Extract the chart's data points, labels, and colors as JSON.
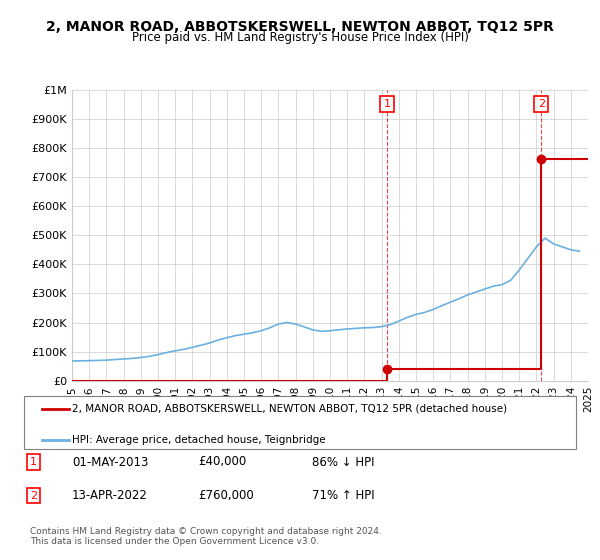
{
  "title": "2, MANOR ROAD, ABBOTSKERSWELL, NEWTON ABBOT, TQ12 5PR",
  "subtitle": "Price paid vs. HM Land Registry's House Price Index (HPI)",
  "legend_entries": [
    "2, MANOR ROAD, ABBOTSKERSWELL, NEWTON ABBOT, TQ12 5PR (detached house)",
    "HPI: Average price, detached house, Teignbridge"
  ],
  "transaction1": {
    "label": "1",
    "date": "01-MAY-2013",
    "price": "£40,000",
    "hpi": "86% ↓ HPI",
    "year": 2013.33,
    "value": 40000
  },
  "transaction2": {
    "label": "2",
    "date": "13-APR-2022",
    "price": "£760,000",
    "hpi": "71% ↑ HPI",
    "year": 2022.28,
    "value": 760000
  },
  "hpi_line_color": "#6ab0e0",
  "price_line_color": "#cc0000",
  "dashed_line_color": "#cc0000",
  "footer": "Contains HM Land Registry data © Crown copyright and database right 2024.\nThis data is licensed under the Open Government Licence v3.0.",
  "ylim": [
    0,
    1000000
  ],
  "xlim": [
    1995,
    2025
  ],
  "yticks": [
    0,
    100000,
    200000,
    300000,
    400000,
    500000,
    600000,
    700000,
    800000,
    900000,
    1000000
  ],
  "ytick_labels": [
    "£0",
    "£100K",
    "£200K",
    "£300K",
    "£400K",
    "£500K",
    "£600K",
    "£700K",
    "£800K",
    "£900K",
    "£1M"
  ],
  "xticks": [
    1995,
    1996,
    1997,
    1998,
    1999,
    2000,
    2001,
    2002,
    2003,
    2004,
    2005,
    2006,
    2007,
    2008,
    2009,
    2010,
    2011,
    2012,
    2013,
    2014,
    2015,
    2016,
    2017,
    2018,
    2019,
    2020,
    2021,
    2022,
    2023,
    2024,
    2025
  ],
  "hpi_years": [
    1995,
    1995.5,
    1996,
    1996.5,
    1997,
    1997.5,
    1998,
    1998.5,
    1999,
    1999.5,
    2000,
    2000.5,
    2001,
    2001.5,
    2002,
    2002.5,
    2003,
    2003.5,
    2004,
    2004.5,
    2005,
    2005.5,
    2006,
    2006.5,
    2007,
    2007.5,
    2008,
    2008.5,
    2009,
    2009.5,
    2010,
    2010.5,
    2011,
    2011.5,
    2012,
    2012.5,
    2013,
    2013.5,
    2014,
    2014.5,
    2015,
    2015.5,
    2016,
    2016.5,
    2017,
    2017.5,
    2018,
    2018.5,
    2019,
    2019.5,
    2020,
    2020.5,
    2021,
    2021.5,
    2022,
    2022.5,
    2023,
    2023.5,
    2024,
    2024.5
  ],
  "hpi_values": [
    68000,
    68500,
    69000,
    70000,
    71000,
    73000,
    75000,
    77000,
    80000,
    84000,
    90000,
    97000,
    103000,
    108000,
    115000,
    122000,
    130000,
    140000,
    148000,
    155000,
    160000,
    165000,
    172000,
    182000,
    195000,
    200000,
    195000,
    185000,
    175000,
    170000,
    172000,
    175000,
    178000,
    180000,
    182000,
    183000,
    186000,
    193000,
    205000,
    218000,
    228000,
    235000,
    245000,
    258000,
    270000,
    282000,
    295000,
    305000,
    315000,
    325000,
    330000,
    345000,
    380000,
    420000,
    460000,
    490000,
    470000,
    460000,
    450000,
    445000
  ]
}
